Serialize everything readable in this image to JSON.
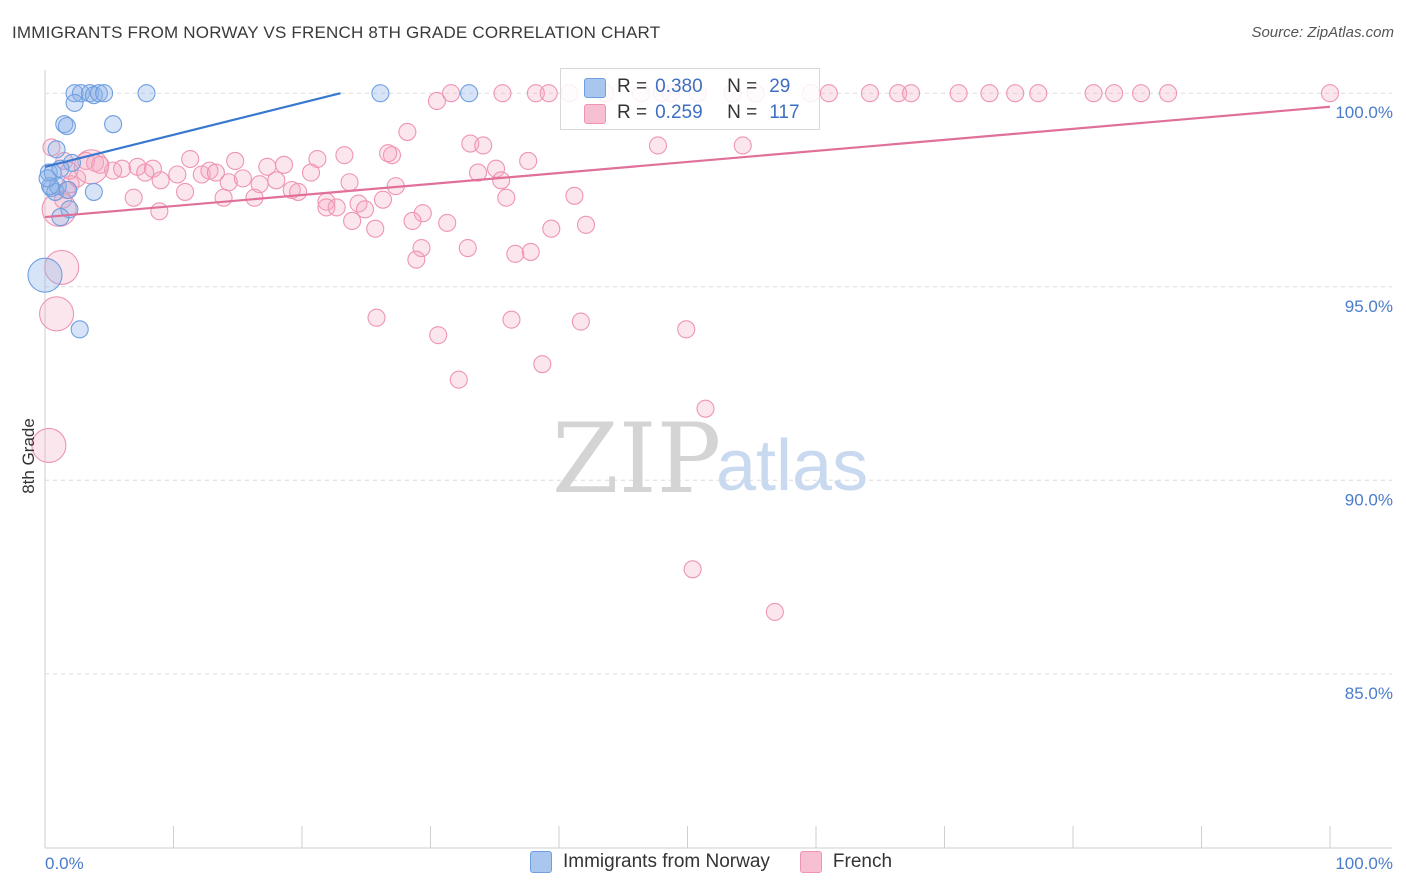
{
  "title": "IMMIGRANTS FROM NORWAY VS FRENCH 8TH GRADE CORRELATION CHART",
  "source": "Source: ZipAtlas.com",
  "watermark": {
    "zip": "ZIP",
    "atlas": "atlas"
  },
  "colors": {
    "norway": "#8fb3e8",
    "norway_line": "#3a78d0",
    "french": "#f3a7c0",
    "french_line": "#e0709a"
  },
  "chart_data": {
    "type": "scatter",
    "title": "IMMIGRANTS FROM NORWAY VS FRENCH 8TH GRADE CORRELATION CHART",
    "xlabel": "",
    "ylabel": "8th Grade",
    "xlim": [
      0,
      100
    ],
    "ylim": [
      80.5,
      100.6
    ],
    "x_tick_labels": [
      "0.0%",
      "100.0%"
    ],
    "y_ticks": [
      {
        "value": 100,
        "label": "100.0%"
      },
      {
        "value": 95,
        "label": "95.0%"
      },
      {
        "value": 90,
        "label": "90.0%"
      },
      {
        "value": 85,
        "label": "85.0%"
      }
    ],
    "series": [
      {
        "name": "Immigrants from Norway",
        "R": "0.380",
        "N": "29",
        "trend": {
          "x": [
            0,
            23
          ],
          "y": [
            98.1,
            100.0
          ]
        },
        "points": [
          {
            "x": 2.3,
            "y": 100,
            "s": 1
          },
          {
            "x": 2.8,
            "y": 100,
            "s": 1
          },
          {
            "x": 3.5,
            "y": 100,
            "s": 1
          },
          {
            "x": 3.8,
            "y": 99.95,
            "s": 1
          },
          {
            "x": 4.2,
            "y": 100,
            "s": 1
          },
          {
            "x": 4.6,
            "y": 100,
            "s": 1
          },
          {
            "x": 7.9,
            "y": 100,
            "s": 1
          },
          {
            "x": 26.1,
            "y": 100,
            "s": 1
          },
          {
            "x": 33.0,
            "y": 100,
            "s": 1
          },
          {
            "x": 2.3,
            "y": 99.75,
            "s": 1
          },
          {
            "x": 1.5,
            "y": 99.2,
            "s": 1
          },
          {
            "x": 1.7,
            "y": 99.15,
            "s": 1
          },
          {
            "x": 5.3,
            "y": 99.2,
            "s": 1
          },
          {
            "x": 0.9,
            "y": 98.55,
            "s": 1
          },
          {
            "x": 2.1,
            "y": 98.2,
            "s": 1
          },
          {
            "x": 0.3,
            "y": 97.95,
            "s": 1
          },
          {
            "x": 0.6,
            "y": 97.95,
            "s": 1
          },
          {
            "x": 1.2,
            "y": 98.05,
            "s": 1
          },
          {
            "x": 0.5,
            "y": 97.55,
            "s": 1
          },
          {
            "x": 0.8,
            "y": 97.45,
            "s": 1
          },
          {
            "x": 1.0,
            "y": 97.6,
            "s": 1
          },
          {
            "x": 3.8,
            "y": 97.45,
            "s": 1
          },
          {
            "x": 1.8,
            "y": 97.5,
            "s": 1
          },
          {
            "x": 0.4,
            "y": 97.6,
            "s": 1
          },
          {
            "x": 1.9,
            "y": 97.0,
            "s": 1
          },
          {
            "x": 1.2,
            "y": 96.8,
            "s": 1
          },
          {
            "x": 0.0,
            "y": 95.3,
            "s": 2
          },
          {
            "x": 2.7,
            "y": 93.9,
            "s": 1
          },
          {
            "x": 0.2,
            "y": 97.8,
            "s": 1
          }
        ]
      },
      {
        "name": "French",
        "R": "0.259",
        "N": "117",
        "trend": {
          "x": [
            0,
            100
          ],
          "y": [
            96.8,
            99.65
          ]
        },
        "points": [
          {
            "x": 31.6,
            "y": 100,
            "s": 1
          },
          {
            "x": 38.2,
            "y": 100,
            "s": 1
          },
          {
            "x": 39.2,
            "y": 100,
            "s": 1
          },
          {
            "x": 40.8,
            "y": 100,
            "s": 1
          },
          {
            "x": 43.6,
            "y": 100,
            "s": 1
          },
          {
            "x": 46.4,
            "y": 100,
            "s": 1
          },
          {
            "x": 48.0,
            "y": 100,
            "s": 1
          },
          {
            "x": 48.7,
            "y": 100,
            "s": 1
          },
          {
            "x": 50.8,
            "y": 100,
            "s": 1
          },
          {
            "x": 53.5,
            "y": 100,
            "s": 1
          },
          {
            "x": 55.3,
            "y": 100,
            "s": 1
          },
          {
            "x": 59.6,
            "y": 100,
            "s": 1
          },
          {
            "x": 61.0,
            "y": 100,
            "s": 1
          },
          {
            "x": 64.2,
            "y": 100,
            "s": 1
          },
          {
            "x": 66.4,
            "y": 100,
            "s": 1
          },
          {
            "x": 67.4,
            "y": 100,
            "s": 1
          },
          {
            "x": 71.1,
            "y": 100,
            "s": 1
          },
          {
            "x": 73.5,
            "y": 100,
            "s": 1
          },
          {
            "x": 75.5,
            "y": 100,
            "s": 1
          },
          {
            "x": 77.3,
            "y": 100,
            "s": 1
          },
          {
            "x": 81.6,
            "y": 100,
            "s": 1
          },
          {
            "x": 83.2,
            "y": 100,
            "s": 1
          },
          {
            "x": 85.3,
            "y": 100,
            "s": 1
          },
          {
            "x": 87.4,
            "y": 100,
            "s": 1
          },
          {
            "x": 100,
            "y": 100,
            "s": 1
          },
          {
            "x": 35.6,
            "y": 100,
            "s": 1
          },
          {
            "x": 30.5,
            "y": 99.8,
            "s": 1
          },
          {
            "x": 28.2,
            "y": 99.0,
            "s": 1
          },
          {
            "x": 33.1,
            "y": 98.7,
            "s": 1
          },
          {
            "x": 34.1,
            "y": 98.65,
            "s": 1
          },
          {
            "x": 27.0,
            "y": 98.4,
            "s": 1
          },
          {
            "x": 26.7,
            "y": 98.45,
            "s": 1
          },
          {
            "x": 23.3,
            "y": 98.4,
            "s": 1
          },
          {
            "x": 21.2,
            "y": 98.3,
            "s": 1
          },
          {
            "x": 37.6,
            "y": 98.25,
            "s": 1
          },
          {
            "x": 47.7,
            "y": 98.65,
            "s": 1
          },
          {
            "x": 0.5,
            "y": 98.6,
            "s": 1
          },
          {
            "x": 3.2,
            "y": 98.25,
            "s": 1
          },
          {
            "x": 3.9,
            "y": 98.2,
            "s": 1
          },
          {
            "x": 4.3,
            "y": 98.15,
            "s": 1
          },
          {
            "x": 5.3,
            "y": 98.0,
            "s": 1
          },
          {
            "x": 6.0,
            "y": 98.05,
            "s": 1
          },
          {
            "x": 7.2,
            "y": 98.1,
            "s": 1
          },
          {
            "x": 7.8,
            "y": 97.95,
            "s": 1
          },
          {
            "x": 8.4,
            "y": 98.05,
            "s": 1
          },
          {
            "x": 9.0,
            "y": 97.75,
            "s": 1
          },
          {
            "x": 10.3,
            "y": 97.9,
            "s": 1
          },
          {
            "x": 11.3,
            "y": 98.3,
            "s": 1
          },
          {
            "x": 12.2,
            "y": 97.9,
            "s": 1
          },
          {
            "x": 12.8,
            "y": 98.0,
            "s": 1
          },
          {
            "x": 13.3,
            "y": 97.95,
            "s": 1
          },
          {
            "x": 14.3,
            "y": 97.7,
            "s": 1
          },
          {
            "x": 14.8,
            "y": 98.25,
            "s": 1
          },
          {
            "x": 15.4,
            "y": 97.8,
            "s": 1
          },
          {
            "x": 16.7,
            "y": 97.65,
            "s": 1
          },
          {
            "x": 17.3,
            "y": 98.1,
            "s": 1
          },
          {
            "x": 18.0,
            "y": 97.75,
            "s": 1
          },
          {
            "x": 18.6,
            "y": 98.15,
            "s": 1
          },
          {
            "x": 19.2,
            "y": 97.5,
            "s": 1
          },
          {
            "x": 19.7,
            "y": 97.45,
            "s": 1
          },
          {
            "x": 20.7,
            "y": 97.95,
            "s": 1
          },
          {
            "x": 21.9,
            "y": 97.2,
            "s": 1
          },
          {
            "x": 22.7,
            "y": 97.05,
            "s": 1
          },
          {
            "x": 23.7,
            "y": 97.7,
            "s": 1
          },
          {
            "x": 24.4,
            "y": 97.15,
            "s": 1
          },
          {
            "x": 24.9,
            "y": 97.0,
            "s": 1
          },
          {
            "x": 26.3,
            "y": 97.25,
            "s": 1
          },
          {
            "x": 27.3,
            "y": 97.6,
            "s": 1
          },
          {
            "x": 29.4,
            "y": 96.9,
            "s": 1
          },
          {
            "x": 31.3,
            "y": 96.65,
            "s": 1
          },
          {
            "x": 32.9,
            "y": 96.0,
            "s": 1
          },
          {
            "x": 33.7,
            "y": 97.95,
            "s": 1
          },
          {
            "x": 35.1,
            "y": 98.05,
            "s": 1
          },
          {
            "x": 35.5,
            "y": 97.75,
            "s": 1
          },
          {
            "x": 35.9,
            "y": 97.3,
            "s": 1
          },
          {
            "x": 36.6,
            "y": 95.85,
            "s": 1
          },
          {
            "x": 37.8,
            "y": 95.9,
            "s": 1
          },
          {
            "x": 39.4,
            "y": 96.5,
            "s": 1
          },
          {
            "x": 41.2,
            "y": 97.35,
            "s": 1
          },
          {
            "x": 42.1,
            "y": 96.6,
            "s": 1
          },
          {
            "x": 28.6,
            "y": 96.7,
            "s": 1
          },
          {
            "x": 25.7,
            "y": 96.5,
            "s": 1
          },
          {
            "x": 23.9,
            "y": 96.7,
            "s": 1
          },
          {
            "x": 21.9,
            "y": 97.05,
            "s": 1
          },
          {
            "x": 29.3,
            "y": 96.0,
            "s": 1
          },
          {
            "x": 28.9,
            "y": 95.7,
            "s": 1
          },
          {
            "x": 6.9,
            "y": 97.3,
            "s": 1
          },
          {
            "x": 8.9,
            "y": 96.95,
            "s": 1
          },
          {
            "x": 10.9,
            "y": 97.45,
            "s": 1
          },
          {
            "x": 13.9,
            "y": 97.3,
            "s": 1
          },
          {
            "x": 16.3,
            "y": 97.3,
            "s": 1
          },
          {
            "x": 2.0,
            "y": 97.65,
            "s": 1
          },
          {
            "x": 1.4,
            "y": 97.25,
            "s": 1
          },
          {
            "x": 2.5,
            "y": 97.8,
            "s": 1
          },
          {
            "x": 1.7,
            "y": 97.5,
            "s": 1
          },
          {
            "x": 1.5,
            "y": 98.25,
            "s": 1
          },
          {
            "x": 1.9,
            "y": 98.0,
            "s": 1
          },
          {
            "x": 1.1,
            "y": 97.0,
            "s": 2
          },
          {
            "x": 1.3,
            "y": 95.5,
            "s": 2
          },
          {
            "x": 0.9,
            "y": 94.3,
            "s": 2
          },
          {
            "x": 0.3,
            "y": 90.9,
            "s": 2
          },
          {
            "x": 3.6,
            "y": 98.1,
            "s": 2
          },
          {
            "x": 25.8,
            "y": 94.2,
            "s": 1
          },
          {
            "x": 30.6,
            "y": 93.75,
            "s": 1
          },
          {
            "x": 32.2,
            "y": 92.6,
            "s": 1
          },
          {
            "x": 36.3,
            "y": 94.15,
            "s": 1
          },
          {
            "x": 38.7,
            "y": 93.0,
            "s": 1
          },
          {
            "x": 41.7,
            "y": 94.1,
            "s": 1
          },
          {
            "x": 49.9,
            "y": 93.9,
            "s": 1
          },
          {
            "x": 51.4,
            "y": 91.85,
            "s": 1
          },
          {
            "x": 50.4,
            "y": 87.7,
            "s": 1
          },
          {
            "x": 56.8,
            "y": 86.6,
            "s": 1
          },
          {
            "x": 54.3,
            "y": 98.65,
            "s": 1
          }
        ]
      }
    ]
  },
  "stats": [
    {
      "r_label": "R =",
      "r_value": "0.380",
      "n_label": "N =",
      "n_value": "29"
    },
    {
      "r_label": "R =",
      "r_value": "0.259",
      "n_label": "N =",
      "n_value": "117"
    }
  ],
  "legend": [
    {
      "label": "Immigrants from Norway"
    },
    {
      "label": "French"
    }
  ]
}
